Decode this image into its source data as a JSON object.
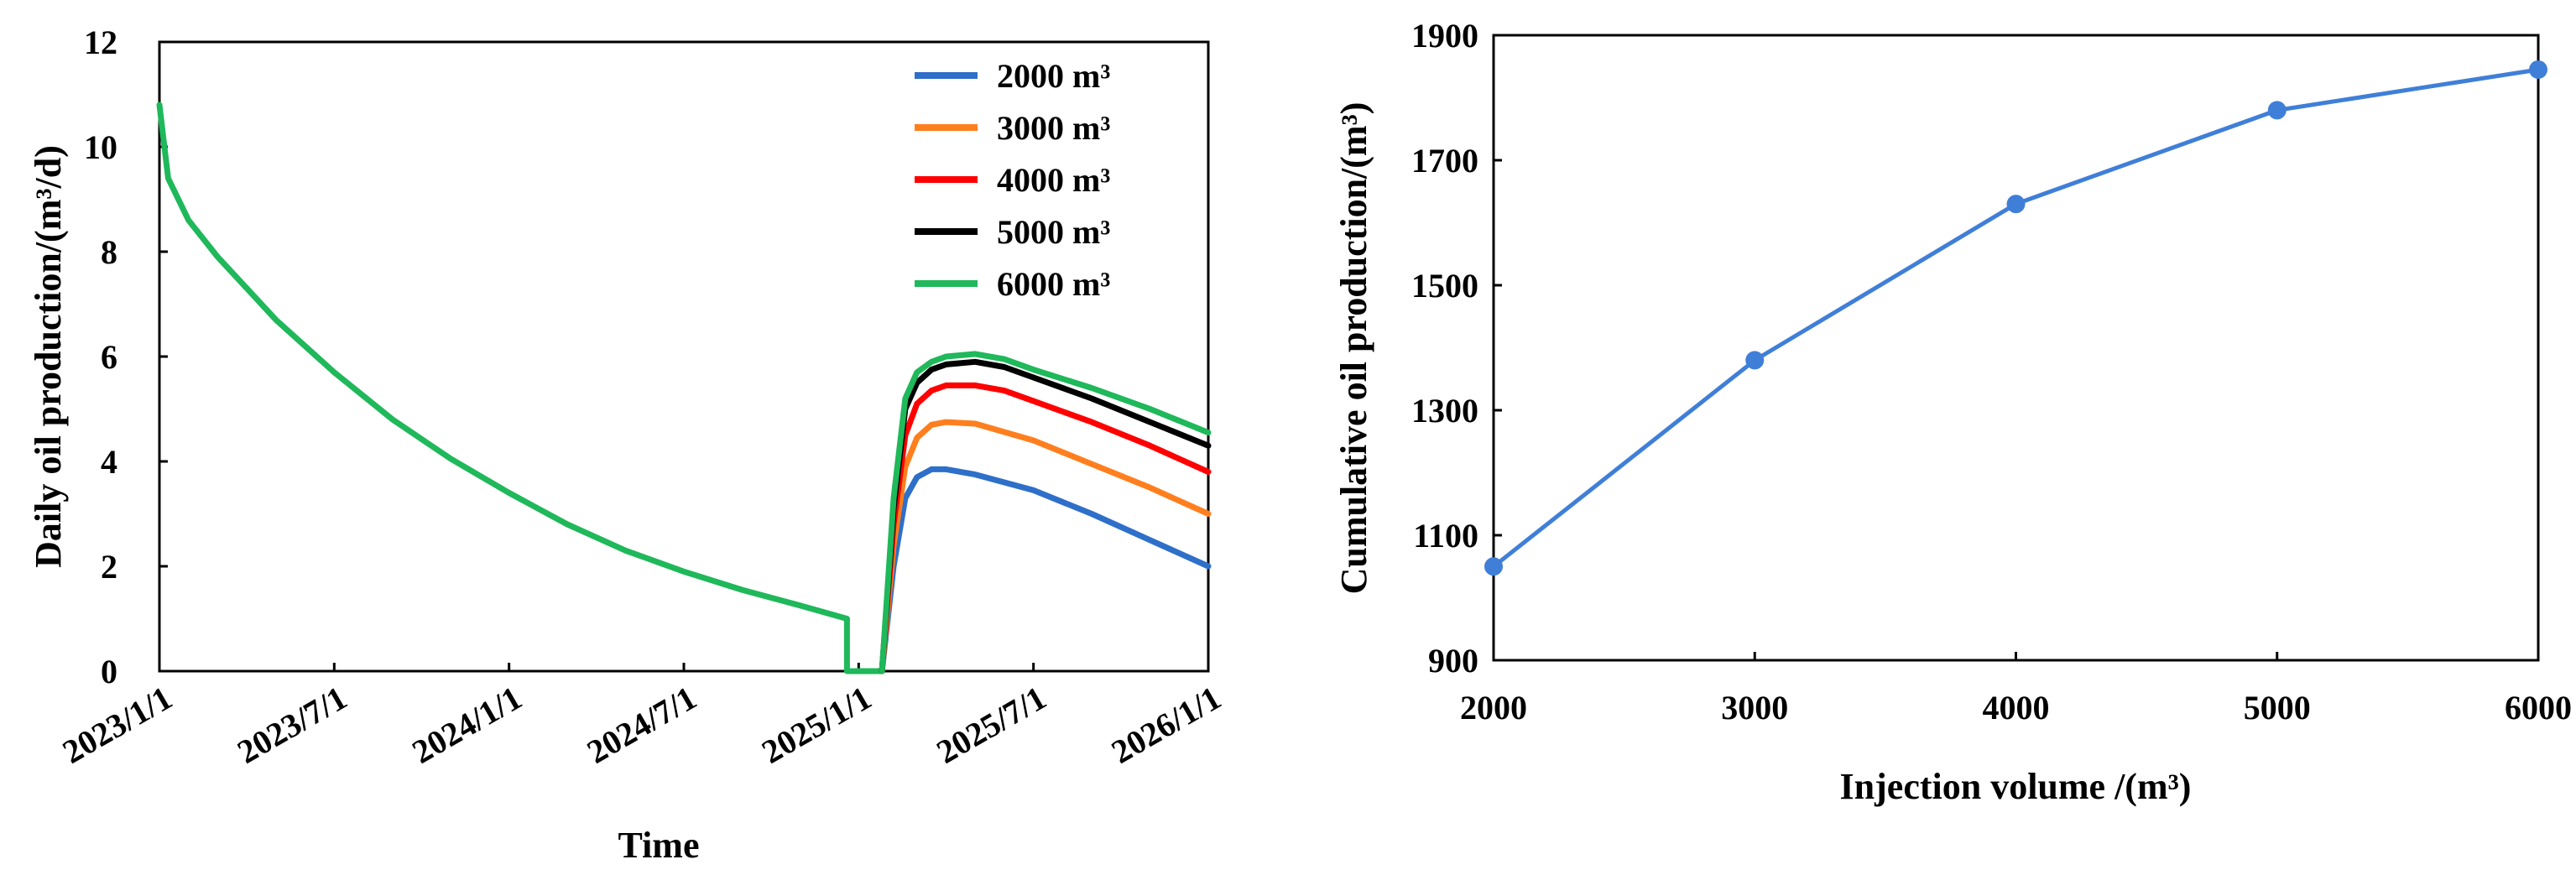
{
  "colors": {
    "series_2000": "#2e6fc9",
    "series_3000": "#ff7f1e",
    "series_4000": "#ff0000",
    "series_5000": "#000000",
    "series_6000": "#1fb85a",
    "right_line": "#3f7fd8"
  },
  "chart_data": [
    {
      "type": "line",
      "xlabel": "Time",
      "ylabel": "Daily oil production/(m³/d)",
      "ylim": [
        0,
        12
      ],
      "yticks": [
        "0",
        "2",
        "4",
        "6",
        "8",
        "10",
        "12"
      ],
      "xticks": [
        "2023/1/1",
        "2023/7/1",
        "2024/1/1",
        "2024/7/1",
        "2025/1/1",
        "2025/7/1",
        "2026/1/1"
      ],
      "x_unit": "months since 2023/1/1",
      "xlim": [
        0,
        36
      ],
      "legend_position": "top-right",
      "shared_decline": {
        "x": [
          0,
          0.3,
          1,
          2,
          3,
          4,
          6,
          8,
          10,
          12,
          14,
          16,
          18,
          20,
          22,
          23.6
        ],
        "y": [
          10.8,
          9.4,
          8.6,
          7.9,
          7.3,
          6.7,
          5.7,
          4.8,
          4.05,
          3.4,
          2.8,
          2.3,
          1.9,
          1.55,
          1.25,
          1.0
        ]
      },
      "shutdown": {
        "x": [
          23.6,
          23.6,
          24.8,
          24.8
        ],
        "y": [
          1.0,
          0,
          0,
          0
        ]
      },
      "series": [
        {
          "name": "2000 m³",
          "x": [
            24.8,
            25.2,
            25.6,
            26,
            26.5,
            27,
            28,
            30,
            32,
            34,
            36
          ],
          "y": [
            0,
            2.0,
            3.3,
            3.7,
            3.85,
            3.85,
            3.75,
            3.45,
            3.0,
            2.5,
            2.0
          ]
        },
        {
          "name": "3000 m³",
          "x": [
            24.8,
            25.2,
            25.6,
            26,
            26.5,
            27,
            28,
            30,
            32,
            34,
            36
          ],
          "y": [
            0,
            2.4,
            3.9,
            4.45,
            4.7,
            4.75,
            4.72,
            4.4,
            3.95,
            3.5,
            3.0
          ]
        },
        {
          "name": "4000 m³",
          "x": [
            24.8,
            25.2,
            25.6,
            26,
            26.5,
            27,
            28,
            29,
            30,
            32,
            34,
            36
          ],
          "y": [
            0,
            2.8,
            4.5,
            5.1,
            5.35,
            5.45,
            5.45,
            5.35,
            5.15,
            4.75,
            4.3,
            3.8
          ]
        },
        {
          "name": "5000 m³",
          "x": [
            24.8,
            25.2,
            25.6,
            26,
            26.5,
            27,
            28,
            29,
            30,
            32,
            34,
            36
          ],
          "y": [
            0,
            3.1,
            5.0,
            5.5,
            5.75,
            5.85,
            5.9,
            5.8,
            5.6,
            5.2,
            4.75,
            4.3
          ]
        },
        {
          "name": "6000 m³",
          "x": [
            24.8,
            25.2,
            25.6,
            26,
            26.5,
            27,
            28,
            29,
            30,
            32,
            34,
            36
          ],
          "y": [
            0,
            3.3,
            5.2,
            5.7,
            5.9,
            6.0,
            6.05,
            5.95,
            5.75,
            5.4,
            5.0,
            4.55
          ]
        }
      ]
    },
    {
      "type": "line",
      "xlabel": "Injection volume /(m³)",
      "ylabel": "Cumulative oil production/(m³)",
      "x": [
        2000,
        3000,
        4000,
        5000,
        6000
      ],
      "xticks": [
        "2000",
        "3000",
        "4000",
        "5000",
        "6000"
      ],
      "xlim": [
        2000,
        6000
      ],
      "ylim": [
        900,
        1900
      ],
      "yticks": [
        "900",
        "1100",
        "1300",
        "1500",
        "1700",
        "1900"
      ],
      "series": [
        {
          "name": "Cumulative oil production",
          "values": [
            1050,
            1380,
            1630,
            1780,
            1845
          ]
        }
      ]
    }
  ]
}
